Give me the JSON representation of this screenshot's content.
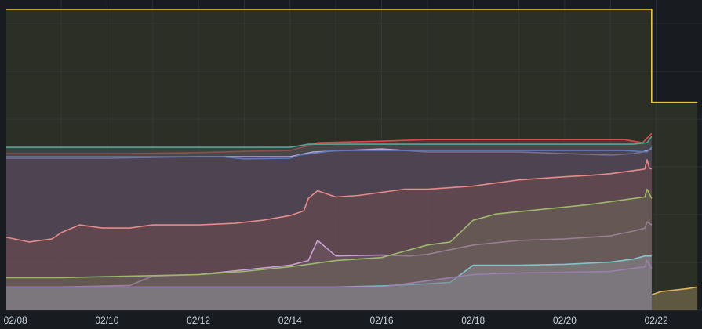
{
  "chart_data": {
    "type": "area",
    "title": "",
    "xlabel": "",
    "ylabel": "",
    "x_tick_labels": [
      "02/08",
      "02/10",
      "02/12",
      "02/14",
      "02/16",
      "02/18",
      "02/20",
      "02/22"
    ],
    "x_tick_days": [
      8,
      10,
      12,
      14,
      16,
      18,
      20,
      22
    ],
    "xlim_days": [
      7.8,
      23.0
    ],
    "ylim": [
      0,
      100
    ],
    "grid": true,
    "legend": "none",
    "series": [
      {
        "color": "#e8c93c",
        "fill": "#3d3f2c",
        "points": [
          [
            7.8,
            97
          ],
          [
            21.9,
            97
          ],
          [
            21.9,
            67
          ],
          [
            22.9,
            67
          ]
        ]
      },
      {
        "color": "#e0b460",
        "fill": "#8a7a55",
        "points": [
          [
            21.9,
            5
          ],
          [
            22.1,
            6
          ],
          [
            22.4,
            6.5
          ],
          [
            22.7,
            7
          ],
          [
            22.9,
            7.5
          ]
        ]
      },
      {
        "color": "#e04848",
        "fill": "#5a4244",
        "points": [
          [
            7.8,
            50.5
          ],
          [
            9.0,
            50.5
          ],
          [
            10.5,
            50.5
          ],
          [
            12.0,
            50.8
          ],
          [
            13.0,
            51.2
          ],
          [
            14.0,
            51.5
          ],
          [
            14.4,
            53
          ],
          [
            14.6,
            54
          ],
          [
            16.0,
            54.5
          ],
          [
            17.0,
            55
          ],
          [
            19.0,
            55
          ],
          [
            21.3,
            55
          ],
          [
            21.5,
            54.5
          ],
          [
            21.7,
            54
          ],
          [
            21.8,
            55.5
          ],
          [
            21.9,
            57
          ]
        ]
      },
      {
        "color": "#5aa39a",
        "fill": "#4a5556",
        "points": [
          [
            7.8,
            52.5
          ],
          [
            10.0,
            52.5
          ],
          [
            12.0,
            52.5
          ],
          [
            14.0,
            52.5
          ],
          [
            14.4,
            53.5
          ],
          [
            16.0,
            53.5
          ],
          [
            18.0,
            53.5
          ],
          [
            20.0,
            53.5
          ],
          [
            21.5,
            53.5
          ],
          [
            21.8,
            54
          ],
          [
            21.9,
            56
          ]
        ]
      },
      {
        "color": "#b7a4d6",
        "fill": "#54454f",
        "points": [
          [
            7.8,
            49
          ],
          [
            10.0,
            49
          ],
          [
            12.0,
            49.5
          ],
          [
            14.0,
            49.5
          ],
          [
            14.5,
            51
          ],
          [
            16.0,
            52
          ],
          [
            17.0,
            51
          ],
          [
            19.0,
            51
          ],
          [
            20.0,
            50.5
          ],
          [
            21.0,
            50
          ],
          [
            21.5,
            50.5
          ],
          [
            21.7,
            51
          ],
          [
            21.9,
            52
          ]
        ]
      },
      {
        "color": "#5c7bb8",
        "fill": "#4e4458",
        "points": [
          [
            7.8,
            49.5
          ],
          [
            10.0,
            49.5
          ],
          [
            12.5,
            49.5
          ],
          [
            13.0,
            48.8
          ],
          [
            14.0,
            49
          ],
          [
            14.2,
            50
          ],
          [
            15.0,
            51.5
          ],
          [
            18.0,
            51.5
          ],
          [
            20.0,
            51.5
          ],
          [
            21.3,
            51.5
          ],
          [
            21.8,
            51
          ],
          [
            21.9,
            52.5
          ]
        ]
      },
      {
        "color": "#e68a8a",
        "fill": "#6d4a4f",
        "points": [
          [
            7.8,
            23.5
          ],
          [
            8.3,
            22
          ],
          [
            8.8,
            23
          ],
          [
            9.0,
            25
          ],
          [
            9.4,
            27.5
          ],
          [
            9.9,
            26.5
          ],
          [
            10.5,
            26.5
          ],
          [
            11.0,
            27.5
          ],
          [
            12.0,
            27.5
          ],
          [
            12.8,
            28
          ],
          [
            13.4,
            29
          ],
          [
            14.0,
            30.5
          ],
          [
            14.3,
            32
          ],
          [
            14.4,
            36
          ],
          [
            14.6,
            38.5
          ],
          [
            15.0,
            36.5
          ],
          [
            15.5,
            37
          ],
          [
            16.0,
            38
          ],
          [
            16.5,
            39
          ],
          [
            17.0,
            39
          ],
          [
            18.0,
            40
          ],
          [
            18.5,
            41
          ],
          [
            19.0,
            42
          ],
          [
            20.0,
            43
          ],
          [
            20.6,
            43.5
          ],
          [
            21.0,
            44
          ],
          [
            21.5,
            45
          ],
          [
            21.75,
            45.5
          ],
          [
            21.8,
            48.5
          ],
          [
            21.85,
            45.8
          ],
          [
            21.9,
            45.5
          ]
        ]
      },
      {
        "color": "#c9a0d6",
        "fill": "#6e5566",
        "points": [
          [
            7.8,
            7.5
          ],
          [
            9.0,
            7.5
          ],
          [
            10.5,
            8
          ],
          [
            11.0,
            11
          ],
          [
            12.0,
            11.5
          ],
          [
            13.0,
            13
          ],
          [
            14.0,
            14.5
          ],
          [
            14.4,
            16
          ],
          [
            14.6,
            22.5
          ],
          [
            14.8,
            20
          ],
          [
            15.0,
            17.5
          ],
          [
            16.0,
            17.8
          ],
          [
            16.6,
            17.5
          ],
          [
            17.0,
            18
          ],
          [
            18.0,
            21
          ],
          [
            19.0,
            22.5
          ],
          [
            20.0,
            23
          ],
          [
            21.0,
            24
          ],
          [
            21.5,
            25.5
          ],
          [
            21.75,
            26.5
          ],
          [
            21.8,
            28.5
          ],
          [
            21.9,
            27.5
          ]
        ]
      },
      {
        "color": "#9cb86a",
        "fill": "#6a6558",
        "points": [
          [
            7.8,
            10.5
          ],
          [
            9.0,
            10.5
          ],
          [
            10.5,
            11
          ],
          [
            12.0,
            11.5
          ],
          [
            13.0,
            12.5
          ],
          [
            14.0,
            14
          ],
          [
            15.0,
            16
          ],
          [
            16.0,
            17
          ],
          [
            17.0,
            21
          ],
          [
            17.5,
            22
          ],
          [
            18.0,
            29
          ],
          [
            18.5,
            31
          ],
          [
            19.5,
            32.5
          ],
          [
            20.5,
            34
          ],
          [
            21.0,
            35
          ],
          [
            21.5,
            36
          ],
          [
            21.75,
            36.5
          ],
          [
            21.8,
            39
          ],
          [
            21.9,
            36
          ]
        ]
      },
      {
        "color": "#7dc6cc",
        "fill": "#8a8a8e",
        "points": [
          [
            7.8,
            7.5
          ],
          [
            10.0,
            7.5
          ],
          [
            12.0,
            7.5
          ],
          [
            14.0,
            7.5
          ],
          [
            15.0,
            7.5
          ],
          [
            16.0,
            7.8
          ],
          [
            17.0,
            8.5
          ],
          [
            17.5,
            9
          ],
          [
            18.0,
            14.5
          ],
          [
            19.0,
            14.5
          ],
          [
            20.0,
            14.8
          ],
          [
            21.0,
            15.5
          ],
          [
            21.5,
            16.5
          ],
          [
            21.75,
            17.5
          ],
          [
            21.9,
            17.5
          ]
        ]
      },
      {
        "color": "#9a7fb0",
        "fill": "#7e7884",
        "points": [
          [
            7.8,
            7.5
          ],
          [
            14.0,
            7.5
          ],
          [
            16.0,
            7.5
          ],
          [
            18.0,
            11.5
          ],
          [
            19.0,
            12
          ],
          [
            20.0,
            12.2
          ],
          [
            21.0,
            12.5
          ],
          [
            21.5,
            13.5
          ],
          [
            21.75,
            14
          ],
          [
            21.8,
            16
          ],
          [
            21.9,
            13.5
          ]
        ]
      }
    ]
  }
}
